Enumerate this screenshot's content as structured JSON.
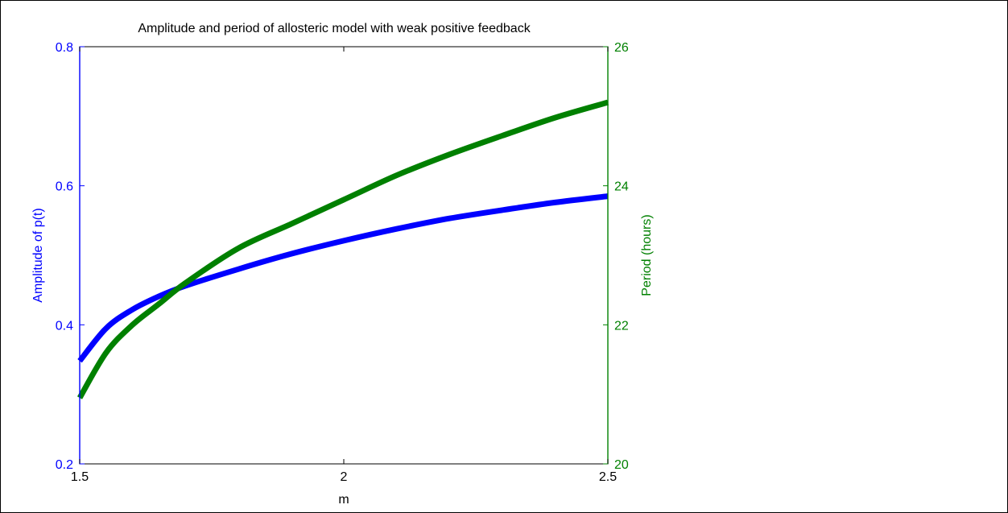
{
  "chart_data": {
    "type": "line",
    "title": "Amplitude and period of allosteric model with weak positive feedback",
    "xlabel": "m",
    "xlim": [
      1.5,
      2.5
    ],
    "xticks": [
      "1.5",
      "2",
      "2.5"
    ],
    "xtick_values": [
      1.5,
      2.0,
      2.5
    ],
    "left_axis": {
      "label": "Amplitude of p(t)",
      "color": "#0000ff",
      "ylim": [
        0.2,
        0.8
      ],
      "ticks": [
        "0.2",
        "0.4",
        "0.6",
        "0.8"
      ],
      "tick_values": [
        0.2,
        0.4,
        0.6,
        0.8
      ]
    },
    "right_axis": {
      "label": "Period (hours)",
      "color": "#008000",
      "ylim": [
        20,
        26
      ],
      "ticks": [
        "20",
        "22",
        "24",
        "26"
      ],
      "tick_values": [
        20,
        22,
        24,
        26
      ]
    },
    "grid": false,
    "series": [
      {
        "axis": "left",
        "color": "#0000ff",
        "x": [
          1.5,
          1.55,
          1.6,
          1.65,
          1.7,
          1.8,
          1.9,
          2.0,
          2.1,
          2.2,
          2.3,
          2.4,
          2.5
        ],
        "y": [
          0.348,
          0.395,
          0.422,
          0.441,
          0.456,
          0.48,
          0.502,
          0.521,
          0.538,
          0.553,
          0.565,
          0.576,
          0.585
        ]
      },
      {
        "axis": "right",
        "color": "#008000",
        "x": [
          1.5,
          1.55,
          1.6,
          1.65,
          1.7,
          1.8,
          1.9,
          2.0,
          2.1,
          2.2,
          2.3,
          2.4,
          2.5
        ],
        "y": [
          20.95,
          21.6,
          22.0,
          22.3,
          22.6,
          23.1,
          23.45,
          23.8,
          24.15,
          24.45,
          24.72,
          24.98,
          25.2
        ]
      }
    ]
  }
}
